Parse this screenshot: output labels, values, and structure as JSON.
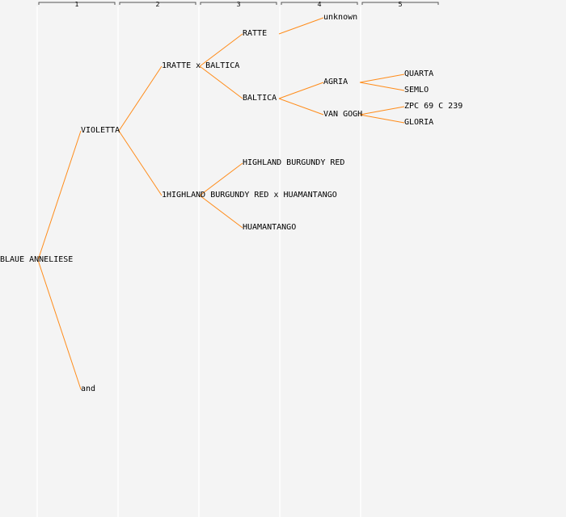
{
  "generations": [
    "1",
    "2",
    "3",
    "4",
    "5"
  ],
  "colors": {
    "link": "#ff8c1a",
    "background": "#f4f4f4",
    "column_line": "#ffffff",
    "bracket": "#555555"
  },
  "nodes": {
    "root": {
      "label": "BLAUE ANNELIESE",
      "gen": 0
    },
    "violetta": {
      "label": "VIOLETTA",
      "gen": 1,
      "parent": "root"
    },
    "and": {
      "label": "and",
      "gen": 1,
      "parent": "root"
    },
    "cross1": {
      "label": "1RATTE x BALTICA",
      "gen": 2,
      "parent": "violetta"
    },
    "cross2": {
      "label": "1HIGHLAND BURGUNDY RED x HUAMANTANGO",
      "gen": 2,
      "parent": "violetta"
    },
    "ratte": {
      "label": "RATTE",
      "gen": 3,
      "parent": "cross1"
    },
    "baltica": {
      "label": "BALTICA",
      "gen": 3,
      "parent": "cross1"
    },
    "hbr": {
      "label": "HIGHLAND BURGUNDY RED",
      "gen": 3,
      "parent": "cross2"
    },
    "huam": {
      "label": "HUAMANTANGO",
      "gen": 3,
      "parent": "cross2"
    },
    "unknown": {
      "label": "unknown",
      "gen": 4,
      "parent": "ratte"
    },
    "agria": {
      "label": "AGRIA",
      "gen": 4,
      "parent": "baltica"
    },
    "vangogh": {
      "label": "VAN GOGH",
      "gen": 4,
      "parent": "baltica"
    },
    "quarta": {
      "label": "QUARTA",
      "gen": 5,
      "parent": "agria"
    },
    "semlo": {
      "label": "SEMLO",
      "gen": 5,
      "parent": "agria"
    },
    "zpc": {
      "label": "ZPC 69 C 239",
      "gen": 5,
      "parent": "vangogh"
    },
    "gloria": {
      "label": "GLORIA",
      "gen": 5,
      "parent": "vangogh"
    }
  }
}
